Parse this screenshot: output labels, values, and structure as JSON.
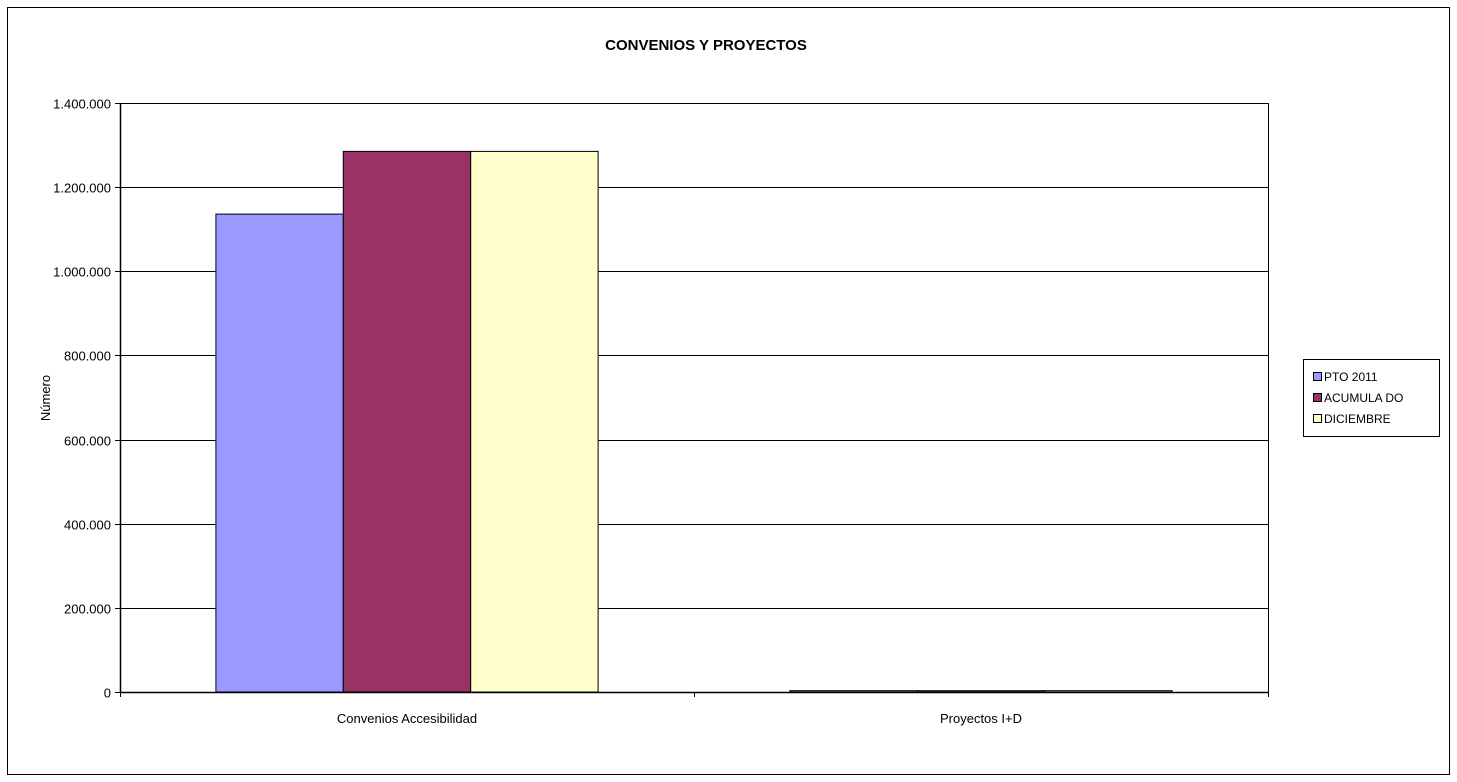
{
  "chart_data": {
    "type": "bar",
    "title": "CONVENIOS Y PROYECTOS",
    "xlabel": "",
    "ylabel": "Número",
    "categories": [
      "Convenios Accesibilidad",
      "Proyectos I+D"
    ],
    "series": [
      {
        "name": "PTO  2011",
        "values": [
          1136000,
          3000
        ],
        "color": "#9999ff"
      },
      {
        "name": "ACUMULA DO",
        "values": [
          1285000,
          3000
        ],
        "color": "#993366"
      },
      {
        "name": "DICIEMBRE",
        "values": [
          1285000,
          3000
        ],
        "color": "#ffffcc"
      }
    ],
    "ylim": [
      0,
      1400000
    ],
    "yticks": [
      0,
      200000,
      400000,
      600000,
      800000,
      1000000,
      1200000,
      1400000
    ],
    "ytick_labels": [
      "0",
      "200.000",
      "400.000",
      "600.000",
      "800.000",
      "1.000.000",
      "1.200.000",
      "1.400.000"
    ],
    "grid": true,
    "legend_position": "right"
  }
}
